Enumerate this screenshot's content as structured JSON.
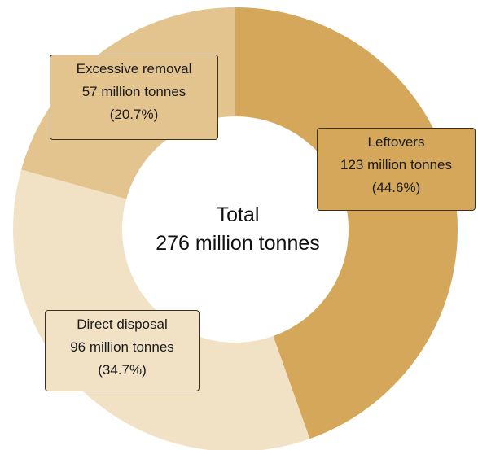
{
  "chart_data": {
    "type": "pie",
    "center_label": {
      "line1": "Total",
      "line2": "276 million tonnes"
    },
    "slices": [
      {
        "name": "Leftovers",
        "value": 123,
        "value_label": "123 million tonnes",
        "percent_label": "(44.6%)",
        "color": "#d4a75a"
      },
      {
        "name": "Direct disposal",
        "value": 96,
        "value_label": "96 million tonnes",
        "percent_label": "(34.7%)",
        "color": "#f1e2c6"
      },
      {
        "name": "Excessive removal",
        "value": 57,
        "value_label": "57 million tonnes",
        "percent_label": "(20.7%)",
        "color": "#e3c48e"
      }
    ],
    "total": 276,
    "start_angle_deg": 0,
    "direction": "clockwise",
    "legend": "none",
    "grid": false
  }
}
